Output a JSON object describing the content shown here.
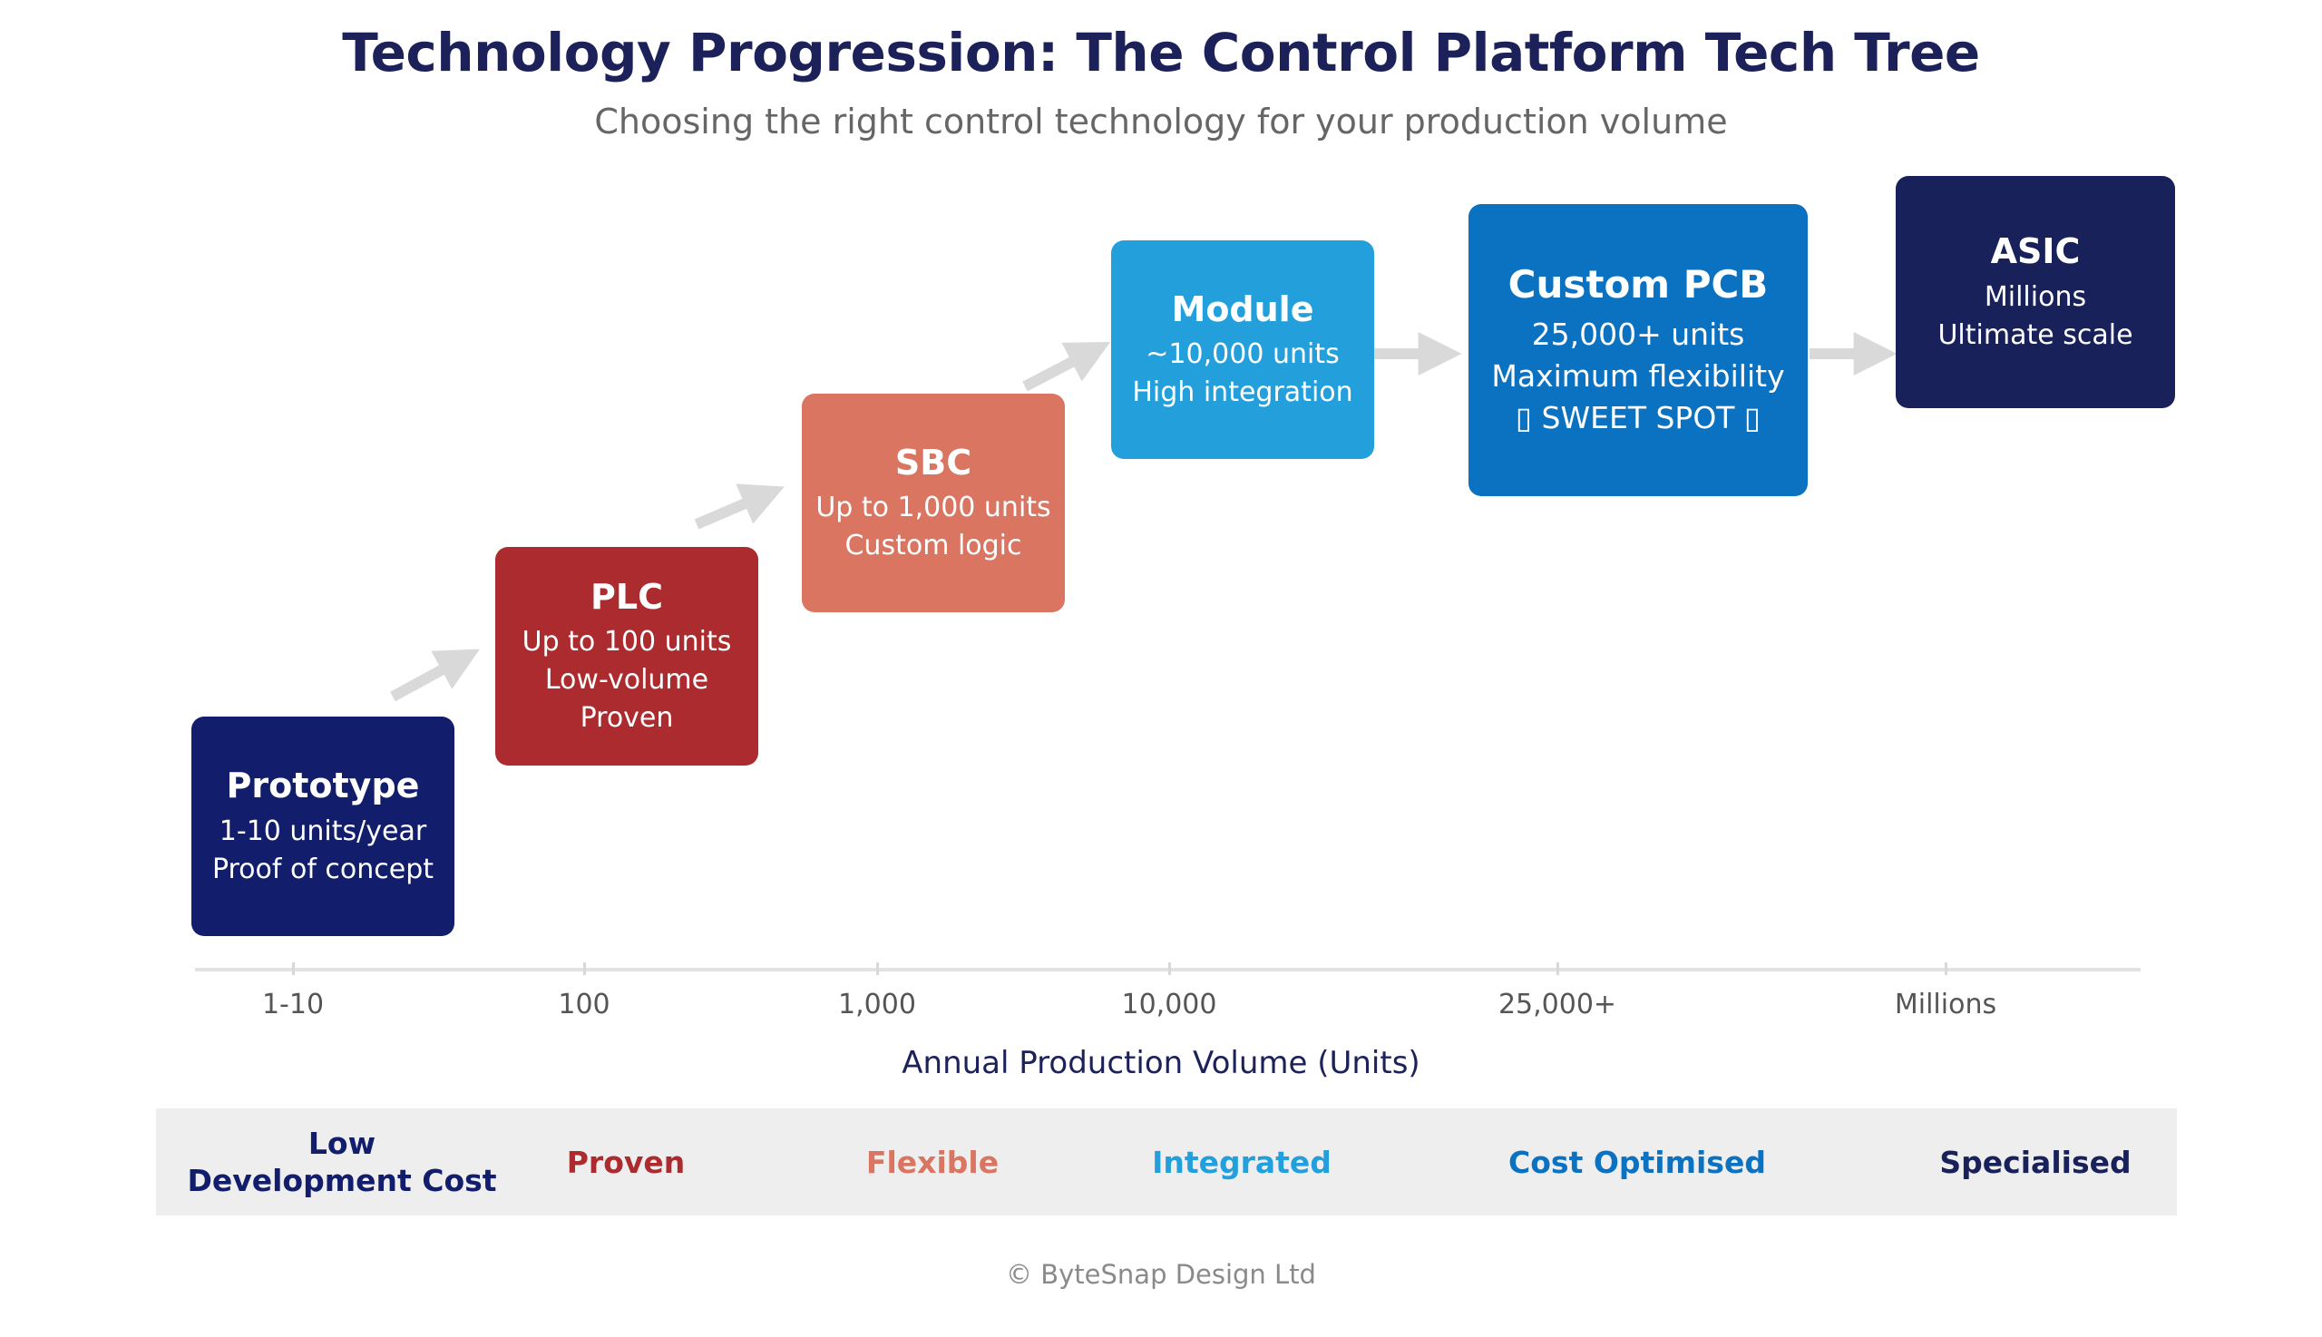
{
  "title": "Technology Progression: The Control Platform Tech Tree",
  "subtitle": "Choosing the right control technology for your production volume",
  "stages": [
    {
      "name": "Prototype",
      "line1": "1-10 units/year",
      "line2": "Proof of concept",
      "line3": "",
      "color": "#121d6b"
    },
    {
      "name": "PLC",
      "line1": "Up to 100 units",
      "line2": "Low-volume",
      "line3": "Proven",
      "color": "#ab2b2e"
    },
    {
      "name": "SBC",
      "line1": "Up to 1,000 units",
      "line2": "Custom logic",
      "line3": "",
      "color": "#d97560"
    },
    {
      "name": "Module",
      "line1": "~10,000 units",
      "line2": "High integration",
      "line3": "",
      "color": "#23a0dc"
    },
    {
      "name": "Custom PCB",
      "line1": "25,000+ units",
      "line2": "Maximum flexibility",
      "line3": "▯ SWEET SPOT ▯",
      "color": "#0b72c2"
    },
    {
      "name": "ASIC",
      "line1": "Millions",
      "line2": "Ultimate scale",
      "line3": "",
      "color": "#18215a"
    }
  ],
  "axis": {
    "ticks": [
      "1-10",
      "100",
      "1,000",
      "10,000",
      "25,000+",
      "Millions"
    ],
    "title": "Annual Production Volume (Units)"
  },
  "band": {
    "labels": [
      {
        "line1": "Low",
        "line2": "Development Cost",
        "color": "#121d6b"
      },
      {
        "line1": "Proven",
        "line2": "",
        "color": "#ab2b2e"
      },
      {
        "line1": "Flexible",
        "line2": "",
        "color": "#d97560"
      },
      {
        "line1": "Integrated",
        "line2": "",
        "color": "#23a0dc"
      },
      {
        "line1": "Cost Optimised",
        "line2": "",
        "color": "#0b72c2"
      },
      {
        "line1": "Specialised",
        "line2": "",
        "color": "#18215a"
      }
    ]
  },
  "colors": {
    "title": "#1c2159",
    "arrow": "#d9d9d9",
    "band_bg": "#eeeeee"
  },
  "footer": "© ByteSnap Design Ltd"
}
